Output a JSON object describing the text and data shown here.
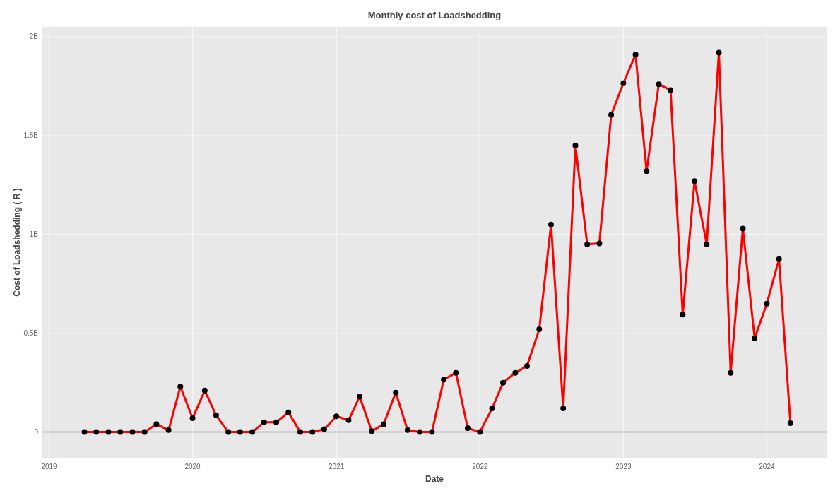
{
  "chart_data": {
    "type": "line",
    "title": "Monthly cost of Loadshedding",
    "xlabel": "Date",
    "ylabel": "Cost of Loadshedding ( R )",
    "x": [
      "2019-04",
      "2019-05",
      "2019-06",
      "2019-07",
      "2019-08",
      "2019-09",
      "2019-10",
      "2019-11",
      "2019-12",
      "2020-01",
      "2020-02",
      "2020-03",
      "2020-04",
      "2020-05",
      "2020-06",
      "2020-07",
      "2020-08",
      "2020-09",
      "2020-10",
      "2020-11",
      "2020-12",
      "2021-01",
      "2021-02",
      "2021-03",
      "2021-04",
      "2021-05",
      "2021-06",
      "2021-07",
      "2021-08",
      "2021-09",
      "2021-10",
      "2021-11",
      "2021-12",
      "2022-01",
      "2022-02",
      "2022-03",
      "2022-04",
      "2022-05",
      "2022-06",
      "2022-07",
      "2022-08",
      "2022-09",
      "2022-10",
      "2022-11",
      "2022-12",
      "2023-01",
      "2023-02",
      "2023-03",
      "2023-04",
      "2023-05",
      "2023-06",
      "2023-07",
      "2023-08",
      "2023-09",
      "2023-10",
      "2023-11",
      "2023-12",
      "2024-01",
      "2024-02",
      "2024-03"
    ],
    "series": [
      {
        "color": "#ff0000",
        "values": [
          0,
          0,
          0,
          0,
          0,
          0,
          0.04,
          0.01,
          0.23,
          0.07,
          0.21,
          0.085,
          0,
          0,
          0,
          0.05,
          0.05,
          0.1,
          0,
          0,
          0.015,
          0.08,
          0.06,
          0.18,
          0.005,
          0.04,
          0.2,
          0.01,
          0,
          0,
          0.265,
          0.3,
          0.02,
          0,
          0.12,
          0.25,
          0.3,
          0.335,
          0.52,
          1.05,
          0.12,
          1.45,
          0.95,
          0.955,
          1.605,
          1.765,
          1.91,
          1.32,
          1.76,
          1.73,
          0.595,
          1.27,
          0.95,
          1.92,
          0.3,
          1.03,
          0.475,
          0.65,
          0.875,
          0.045
        ]
      }
    ],
    "xlim": [
      "2018-12-15",
      "2024-06-01"
    ],
    "xticks": [
      "2019",
      "2020",
      "2021",
      "2022",
      "2023",
      "2024"
    ],
    "ylim": [
      -0.13,
      2.05
    ],
    "yticks": [
      {
        "value": 0,
        "label": "0"
      },
      {
        "value": 0.5,
        "label": "0.5B"
      },
      {
        "value": 1,
        "label": "1B"
      },
      {
        "value": 1.5,
        "label": "1.5B"
      },
      {
        "value": 2,
        "label": "2B"
      }
    ],
    "ref_lines": [
      {
        "axis": "y",
        "value": 0,
        "color": "#888888"
      }
    ],
    "grid": true,
    "marker": "circle",
    "line_style": "solid"
  }
}
